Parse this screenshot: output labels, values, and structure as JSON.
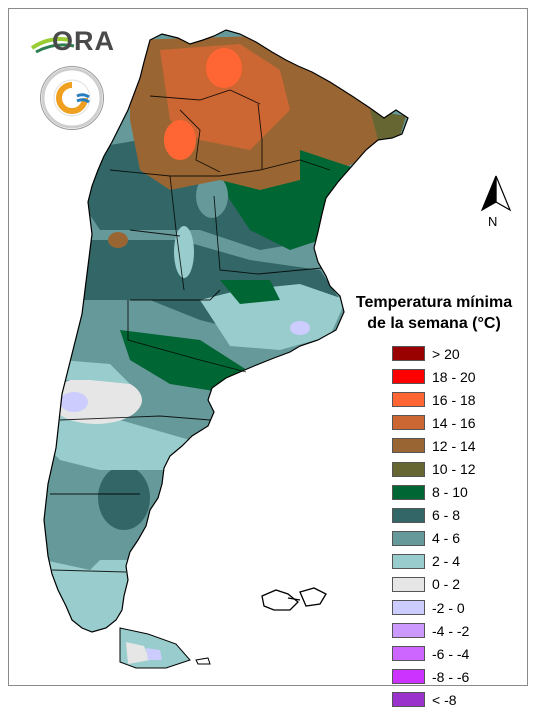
{
  "map": {
    "region": "Argentina",
    "legend": {
      "title_line1": "Temperatura mínima",
      "title_line2": "de la semana (°C)",
      "classes": [
        {
          "label": "> 20",
          "color": "#990000"
        },
        {
          "label": "18 - 20",
          "color": "#ff0000"
        },
        {
          "label": "16 - 18",
          "color": "#ff6633"
        },
        {
          "label": "14 - 16",
          "color": "#cc6633"
        },
        {
          "label": "12 - 14",
          "color": "#996633"
        },
        {
          "label": "10 - 12",
          "color": "#666633"
        },
        {
          "label": "8 - 10",
          "color": "#006633"
        },
        {
          "label": "6 - 8",
          "color": "#336666"
        },
        {
          "label": "4 - 6",
          "color": "#669999"
        },
        {
          "label": "2 - 4",
          "color": "#99cccc"
        },
        {
          "label": "0 - 2",
          "color": "#e6e6e6"
        },
        {
          "label": "-2 - 0",
          "color": "#ccccff"
        },
        {
          "label": "-4 - -2",
          "color": "#cc99ff"
        },
        {
          "label": "-6 - -4",
          "color": "#cc66ff"
        },
        {
          "label": "-8 - -6",
          "color": "#cc33ff"
        },
        {
          "label": "< -8",
          "color": "#9933cc"
        }
      ]
    },
    "north_arrow_label": "N",
    "logos": {
      "ora_text": "ORA",
      "seal_icon": "smn-argentina-seal-icon"
    }
  }
}
